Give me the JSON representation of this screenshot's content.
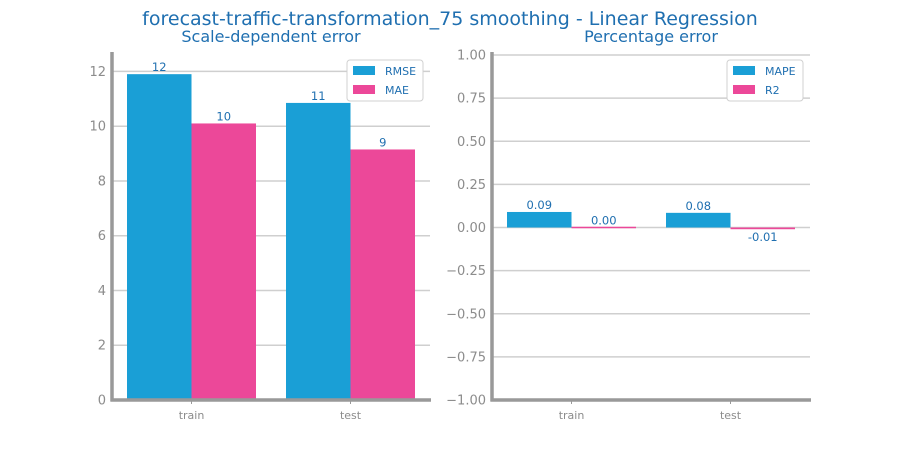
{
  "figure": {
    "title": "forecast-traffic-transformation_75 smoothing - Linear Regression"
  },
  "colors": {
    "series1": "#1a9fd6",
    "series2": "#ec4899",
    "grid": "#cfcfcf",
    "axis": "#999999",
    "text": "#1f6fb0",
    "tick": "#8c8c8c"
  },
  "chart_data": [
    {
      "type": "bar",
      "title": "Scale-dependent error",
      "categories": [
        "train",
        "test"
      ],
      "series": [
        {
          "name": "RMSE",
          "values": [
            11.9,
            10.85
          ],
          "labels": [
            "12",
            "11"
          ]
        },
        {
          "name": "MAE",
          "values": [
            10.1,
            9.15
          ],
          "labels": [
            "10",
            "9"
          ]
        }
      ],
      "ylim": [
        0,
        12.6
      ],
      "yticks": [
        0,
        2,
        4,
        6,
        8,
        10,
        12
      ],
      "ytick_labels": [
        "0",
        "2",
        "4",
        "6",
        "8",
        "10",
        "12"
      ],
      "grid": true,
      "legend": "top-right"
    },
    {
      "type": "bar",
      "title": "Percentage error",
      "categories": [
        "train",
        "test"
      ],
      "series": [
        {
          "name": "MAPE",
          "values": [
            0.09,
            0.085
          ],
          "labels": [
            "0.09",
            "0.08"
          ]
        },
        {
          "name": "R2",
          "values": [
            0.0,
            -0.01
          ],
          "labels": [
            "0.00",
            "-0.01"
          ]
        }
      ],
      "ylim": [
        -1.0,
        1.0
      ],
      "yticks": [
        -1.0,
        -0.75,
        -0.5,
        -0.25,
        0.0,
        0.25,
        0.5,
        0.75,
        1.0
      ],
      "ytick_labels": [
        "−1.00",
        "−0.75",
        "−0.50",
        "−0.25",
        "0.00",
        "0.25",
        "0.50",
        "0.75",
        "1.00"
      ],
      "grid": true,
      "legend": "top-right"
    }
  ]
}
